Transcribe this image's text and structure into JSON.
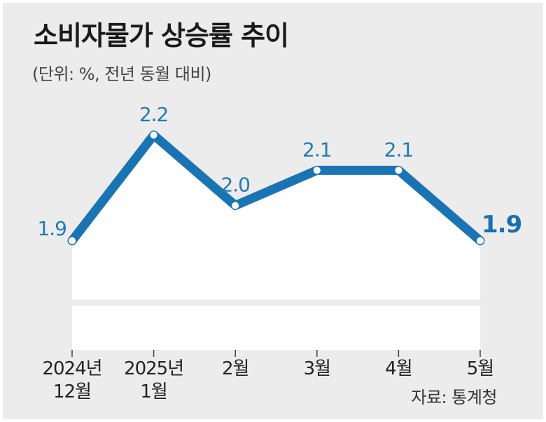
{
  "title": "소비자물가 상승률 추이",
  "subtitle": "(단위: %, 전년 동월 대비)",
  "source": "자료: 통계청",
  "colors": {
    "line": "#1a74b4",
    "background": "#ececec",
    "area": "#ffffff"
  },
  "chart_data": {
    "type": "line",
    "title": "소비자물가 상승률 추이",
    "ylabel": "%",
    "xlabel": "",
    "categories": [
      [
        "2024년",
        "12월"
      ],
      [
        "2025년",
        "1월"
      ],
      [
        "2월"
      ],
      [
        "3월"
      ],
      [
        "4월"
      ],
      [
        "5월"
      ]
    ],
    "values": [
      1.9,
      2.2,
      2.0,
      2.1,
      2.1,
      1.9
    ],
    "labels": [
      "1.9",
      "2.2",
      "2.0",
      "2.1",
      "2.1",
      "1.9"
    ],
    "ylim": [
      1.4,
      2.4
    ],
    "grid": false,
    "legend": "none",
    "axis_break": true
  }
}
